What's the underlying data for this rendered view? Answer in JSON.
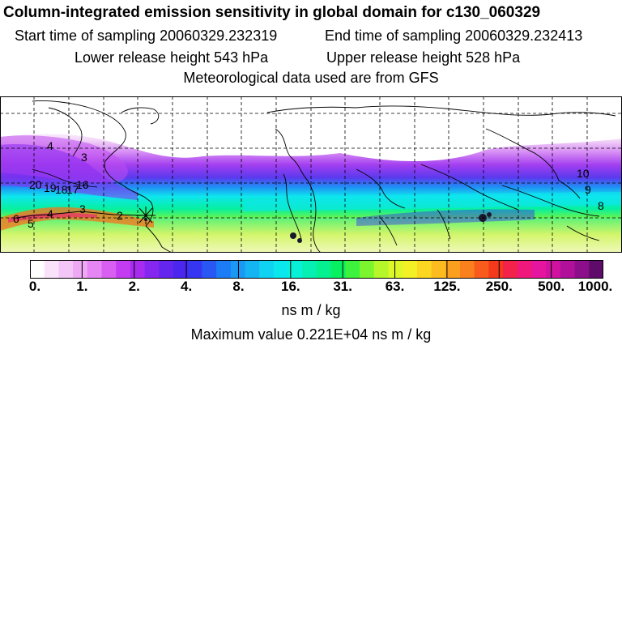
{
  "header": {
    "title": "Column-integrated emission sensitivity in global domain for c130_060329",
    "start_time": "Start time of sampling 20060329.232319",
    "end_time": "End time of sampling 20060329.232413",
    "lower_release": "Lower release height  543 hPa",
    "upper_release": "Upper release height  528 hPa",
    "met_data": "Meteorological data used are from GFS"
  },
  "map": {
    "trajectory_labels": [
      "4",
      "3",
      "20",
      "19",
      "18",
      "17",
      "16",
      "6",
      "5",
      "4",
      "3",
      "2",
      "10",
      "9",
      "8"
    ]
  },
  "colorbar": {
    "colors": [
      "#ffffff",
      "#fbe2fb",
      "#f4c6f7",
      "#efa8f4",
      "#e686f4",
      "#d95ff2",
      "#c43cf1",
      "#a82cf0",
      "#8627ef",
      "#6426ee",
      "#4a26ee",
      "#3636f2",
      "#2857f4",
      "#1c7cf5",
      "#1a98f4",
      "#15b4f3",
      "#10d3f2",
      "#0ae8ee",
      "#08f0d8",
      "#06f0b4",
      "#05f08e",
      "#07f060",
      "#3df23c",
      "#7df52e",
      "#b5f72a",
      "#dcf829",
      "#f3f026",
      "#fbd722",
      "#fcbc20",
      "#fba01e",
      "#fa7f1d",
      "#f85b1c",
      "#f53a1b",
      "#f2224a",
      "#f0197b",
      "#e615a0",
      "#cf12a0",
      "#b0109a",
      "#8c0e8a",
      "#5e0b6a"
    ],
    "tick_labels": [
      "0.",
      "1.",
      "2.",
      "4.",
      "8.",
      "16.",
      "31.",
      "63.",
      "125.",
      "250.",
      "500.",
      "1000."
    ],
    "unit": "ns m / kg"
  },
  "footer": {
    "max_value": "Maximum value  0.221E+04 ns m / kg"
  }
}
